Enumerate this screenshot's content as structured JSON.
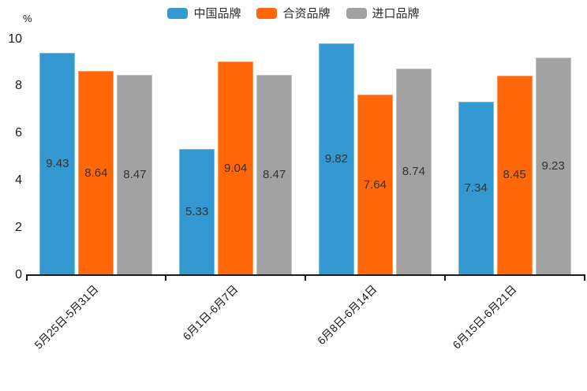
{
  "chart_data": {
    "type": "bar",
    "title": "",
    "xlabel": "",
    "ylabel": "%",
    "categories": [
      "5月25日-5月31日",
      "6月1日-6月7日",
      "6月8日-6月14日",
      "6月15日-6月21日"
    ],
    "series": [
      {
        "name": "中国品牌",
        "color": "#3499d0",
        "values": [
          9.43,
          5.33,
          9.82,
          7.34
        ]
      },
      {
        "name": "合资品牌",
        "color": "#ff6709",
        "values": [
          8.64,
          9.04,
          7.64,
          8.45
        ]
      },
      {
        "name": "进口品牌",
        "color": "#a2a2a2",
        "values": [
          8.47,
          8.47,
          8.74,
          9.23
        ]
      }
    ],
    "ylim": [
      0,
      10
    ],
    "yticks": [
      0,
      2,
      4,
      6,
      8,
      10
    ],
    "grid": false,
    "legend_position": "top",
    "value_labels": "centered-inside-bars",
    "x_label_rotation": 45
  },
  "colors": {
    "background": "#ffffff",
    "axis": "#1a1a1a",
    "value_label_text": "#333333",
    "legend_text": "#2b2b2b"
  }
}
